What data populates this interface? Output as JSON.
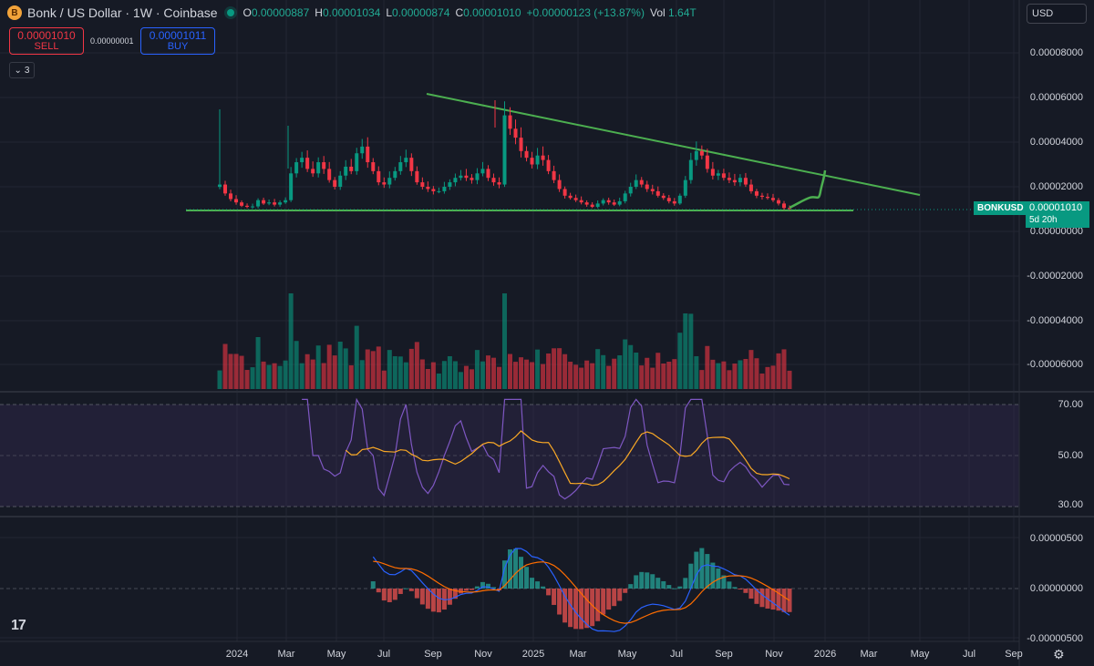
{
  "header": {
    "logo_icon": "bonk-coin-icon",
    "title": "Bonk / US Dollar · 1W · Coinbase",
    "ohlc": {
      "o_label": "O",
      "o": "0.00000887",
      "h_label": "H",
      "h": "0.00001034",
      "l_label": "L",
      "l": "0.00000874",
      "c_label": "C",
      "c": "0.00001010",
      "change": "+0.00000123 (+13.87%)",
      "vol_label": "Vol",
      "vol": "1.64T"
    }
  },
  "trade": {
    "sell_price": "0.00001010",
    "sell_label": "SELL",
    "spread": "0.00000001",
    "buy_price": "0.00001011",
    "buy_label": "BUY"
  },
  "indicators_toggle": {
    "icon": "chevron-down-icon",
    "count": "3"
  },
  "currency": "USD",
  "price_axis": {
    "ticks": [
      "0.00008000",
      "0.00006000",
      "0.00004000",
      "0.00002000",
      "0.00000000",
      "-0.00002000",
      "-0.00004000",
      "-0.00006000"
    ]
  },
  "rsi_axis": {
    "ticks": [
      "70.00",
      "50.00",
      "30.00"
    ]
  },
  "macd_axis": {
    "ticks": [
      "0.00000500",
      "0.00000000",
      "-0.00000500"
    ]
  },
  "last_price": {
    "symbol": "BONKUSD",
    "price": "0.00001010",
    "countdown": "5d 20h"
  },
  "time_axis": {
    "labels": [
      "2024",
      "Mar",
      "May",
      "Jul",
      "Sep",
      "Nov",
      "2025",
      "Mar",
      "May",
      "Jul",
      "Sep",
      "Nov",
      "2026",
      "Mar",
      "May",
      "Jul",
      "Sep"
    ]
  },
  "colors": {
    "bull": "#089981",
    "bear": "#f23645",
    "trendline": "#4caf50",
    "rsi": "#7e57c2",
    "rsi_ma": "#f9a825",
    "macd": "#2962ff",
    "signal": "#ff6d00"
  },
  "chart_data": {
    "type": "candlestick",
    "title": "Bonk / US Dollar · 1W · Coinbase",
    "close_price_series": [
      2.1,
      1.7,
      1.45,
      1.3,
      1.15,
      1.1,
      1.12,
      1.4,
      1.25,
      1.3,
      1.2,
      1.3,
      1.4,
      2.6,
      3.1,
      3.3,
      2.8,
      2.6,
      3.1,
      2.8,
      2.3,
      2.0,
      2.5,
      2.9,
      2.7,
      3.5,
      3.8,
      3.1,
      2.7,
      2.2,
      2.1,
      2.4,
      2.7,
      3.1,
      3.3,
      2.7,
      2.2,
      2.0,
      1.9,
      1.8,
      1.8,
      2.0,
      2.2,
      2.4,
      2.5,
      2.4,
      2.3,
      2.6,
      2.8,
      2.4,
      2.2,
      2.1,
      5.2,
      4.6,
      4.2,
      3.6,
      3.3,
      3.0,
      3.4,
      3.2,
      2.7,
      2.3,
      1.9,
      1.6,
      1.5,
      1.4,
      1.3,
      1.2,
      1.1,
      1.25,
      1.4,
      1.3,
      1.2,
      1.35,
      1.7,
      2.0,
      2.3,
      2.1,
      1.9,
      1.8,
      1.6,
      1.5,
      1.35,
      1.25,
      1.6,
      2.3,
      3.2,
      3.6,
      3.4,
      2.8,
      2.5,
      2.6,
      2.4,
      2.3,
      2.2,
      2.4,
      2.1,
      1.8,
      1.6,
      1.55,
      1.5,
      1.4,
      1.25,
      1.05,
      1.01
    ],
    "rsi": {
      "upper": 70,
      "middle": 50,
      "lower": 30
    },
    "macd_zero": 0
  }
}
